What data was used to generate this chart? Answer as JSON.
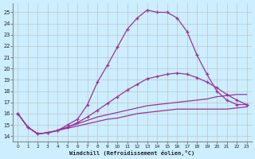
{
  "xlabel": "Windchill (Refroidissement éolien,°C)",
  "bg_color": "#cceeff",
  "grid_color": "#bbbbbb",
  "line_color": "#993399",
  "xlim": [
    -0.5,
    23.5
  ],
  "ylim": [
    13.5,
    25.8
  ],
  "xticks": [
    0,
    1,
    2,
    3,
    4,
    5,
    6,
    7,
    8,
    9,
    10,
    11,
    12,
    13,
    14,
    15,
    16,
    17,
    18,
    19,
    20,
    21,
    22,
    23
  ],
  "yticks": [
    14,
    15,
    16,
    17,
    18,
    19,
    20,
    21,
    22,
    23,
    24,
    25
  ],
  "line1_x": [
    0,
    1,
    2,
    3,
    4,
    5,
    6,
    7,
    8,
    9,
    10,
    11,
    12,
    13,
    14,
    15,
    16,
    17,
    18,
    19,
    20,
    21,
    22,
    23
  ],
  "line1_y": [
    16.0,
    14.8,
    14.2,
    14.3,
    14.5,
    14.7,
    14.9,
    15.1,
    15.3,
    15.5,
    15.6,
    15.8,
    16.0,
    16.1,
    16.2,
    16.3,
    16.4,
    16.4,
    16.4,
    16.4,
    16.4,
    16.4,
    16.5,
    16.6
  ],
  "line2_x": [
    0,
    1,
    2,
    3,
    4,
    5,
    6,
    7,
    8,
    9,
    10,
    11,
    12,
    13,
    14,
    15,
    16,
    17,
    18,
    19,
    20,
    21,
    22,
    23
  ],
  "line2_y": [
    16.0,
    14.8,
    14.2,
    14.3,
    14.5,
    14.8,
    15.1,
    15.4,
    15.7,
    15.9,
    16.1,
    16.3,
    16.5,
    16.7,
    16.8,
    16.9,
    17.0,
    17.1,
    17.2,
    17.3,
    17.5,
    17.6,
    17.7,
    17.7
  ],
  "line3_x": [
    0,
    1,
    2,
    3,
    4,
    5,
    6,
    7,
    8,
    9,
    10,
    11,
    12,
    13,
    14,
    15,
    16,
    17,
    18,
    19,
    20,
    21,
    22,
    23
  ],
  "line3_y": [
    16.0,
    14.8,
    14.2,
    14.3,
    14.5,
    14.8,
    15.2,
    15.7,
    16.3,
    16.9,
    17.5,
    18.1,
    18.6,
    19.1,
    19.3,
    19.5,
    19.6,
    19.5,
    19.2,
    18.8,
    18.3,
    17.7,
    17.2,
    16.8
  ],
  "line4_x": [
    0,
    1,
    2,
    3,
    4,
    5,
    6,
    7,
    8,
    9,
    10,
    11,
    12,
    13,
    14,
    15,
    16,
    17,
    18,
    19,
    20,
    21,
    22,
    23
  ],
  "line4_y": [
    16.0,
    14.8,
    14.2,
    14.3,
    14.5,
    15.0,
    15.5,
    16.8,
    18.8,
    20.3,
    21.9,
    23.5,
    24.5,
    25.2,
    25.0,
    25.0,
    24.5,
    23.3,
    21.2,
    19.5,
    18.0,
    17.2,
    16.8,
    16.8
  ],
  "line1_markers": false,
  "line2_markers": false,
  "line3_markers": true,
  "line4_markers": true
}
